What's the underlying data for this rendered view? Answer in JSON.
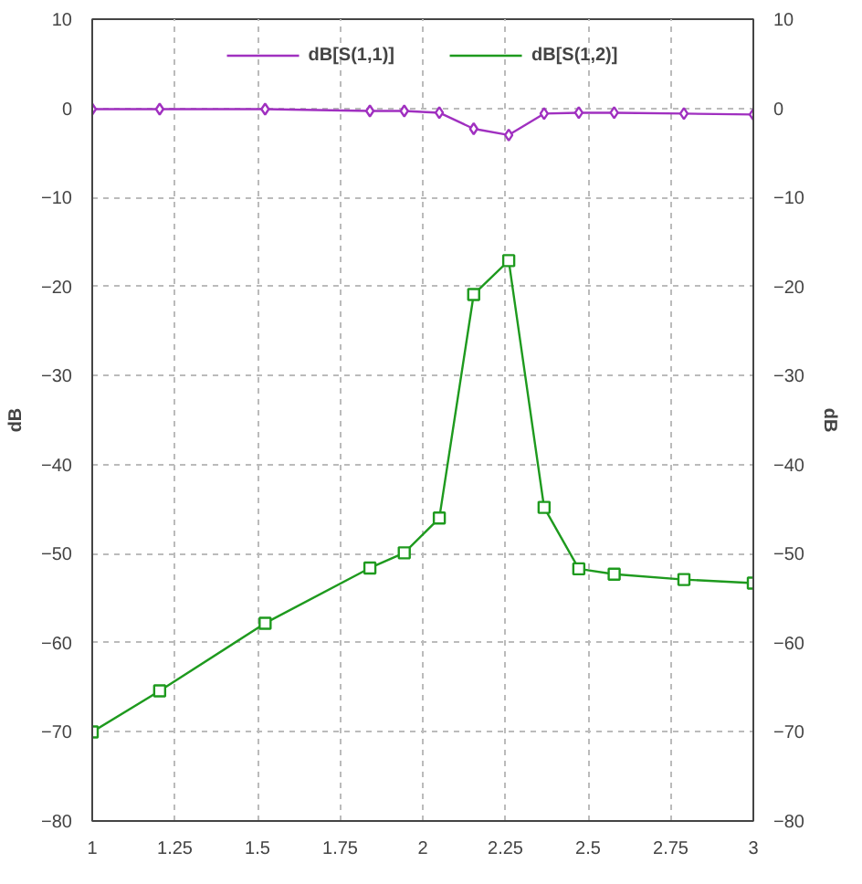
{
  "chart_data": {
    "type": "line",
    "ylabel": "dB",
    "y2label": "dB",
    "x": [
      1,
      1.204,
      1.523,
      1.84,
      1.944,
      2.05,
      2.154,
      2.26,
      2.367,
      2.472,
      2.579,
      2.79,
      3
    ],
    "series": [
      {
        "name": "dB[S(1,1)]",
        "color": "#a030c0",
        "marker": "diamond",
        "values": [
          -0.1,
          -0.1,
          -0.1,
          -0.3,
          -0.3,
          -0.5,
          -2.3,
          -3.0,
          -0.6,
          -0.5,
          -0.5,
          -0.6,
          -0.7
        ]
      },
      {
        "name": "dB[S(1,2)]",
        "color": "#1e9a1e",
        "marker": "square",
        "values": [
          -70,
          -65.4,
          -57.8,
          -51.6,
          -49.9,
          -46,
          -20.9,
          -17.1,
          -44.8,
          -51.7,
          -52.3,
          -52.9,
          -53.3
        ]
      }
    ],
    "xlim": [
      1,
      3
    ],
    "xticks": [
      1,
      1.25,
      1.5,
      1.75,
      2,
      2.25,
      2.5,
      2.75,
      3
    ],
    "ylim": [
      -80,
      10
    ],
    "yticks": [
      -80,
      -70,
      -60,
      -50,
      -40,
      -30,
      -20,
      -10,
      0,
      10
    ],
    "y2lim": [
      -80,
      10
    ],
    "y2ticks": [
      -80,
      -70,
      -60,
      -50,
      -40,
      -30,
      -20,
      -10,
      0,
      10
    ],
    "grid": true,
    "legend": "top",
    "line_style": "solid"
  }
}
